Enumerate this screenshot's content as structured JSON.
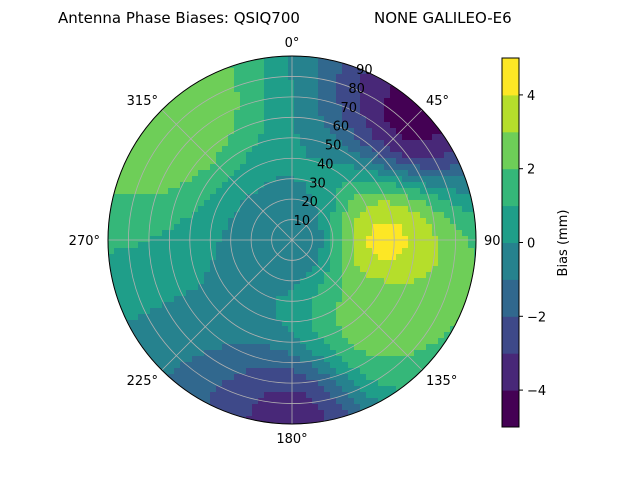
{
  "chart_data": {
    "type": "heatmap",
    "projection": "polar",
    "title": "Antenna Phase Biases: QSIQ700",
    "subtitle": "NONE GALILEO-E6",
    "theta_direction": "clockwise",
    "theta_zero": "top",
    "azimuth_ticks": [
      "0°",
      "45°",
      "90°",
      "135°",
      "180°",
      "225°",
      "270°",
      "315°"
    ],
    "radial_ticks": [
      "10",
      "20",
      "30",
      "40",
      "50",
      "60",
      "70",
      "80",
      "90"
    ],
    "radial_label_angle_deg": 22.5,
    "rlim": [
      0,
      90
    ],
    "grid": true,
    "colorbar": {
      "label": "Bias (mm)",
      "cmap": "viridis",
      "levels": [
        -5,
        -4,
        -3,
        -2,
        -1,
        0,
        1,
        2,
        3,
        4,
        5
      ],
      "ticks": [
        "−4",
        "−2",
        "0",
        "2",
        "4"
      ],
      "tick_values": [
        -4,
        -2,
        0,
        2,
        4
      ],
      "range": [
        -5,
        5
      ]
    },
    "field_features": [
      {
        "description": "peak",
        "azimuth_deg": 90,
        "zenith_deg": 45,
        "value": 4.5
      },
      {
        "description": "positive band",
        "azimuth_deg": 135,
        "zenith_deg": 55,
        "value": 2.5
      },
      {
        "description": "low",
        "azimuth_deg": 45,
        "zenith_deg": 85,
        "value": -4.5
      },
      {
        "description": "low",
        "azimuth_deg": 180,
        "zenith_deg": 88,
        "value": -3.5
      },
      {
        "description": "high rim",
        "azimuth_deg": 315,
        "zenith_deg": 85,
        "value": 3.0
      },
      {
        "description": "center",
        "azimuth_deg": 0,
        "zenith_deg": 0,
        "value": -1.0
      }
    ]
  }
}
